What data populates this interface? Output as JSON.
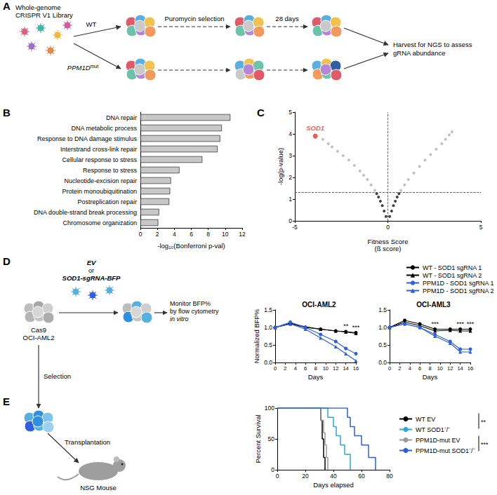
{
  "panel_labels": [
    "A",
    "B",
    "C",
    "D",
    "E"
  ],
  "diagrams": {
    "A": {
      "library": [
        "Whole-genome",
        "CRISPR V1 Library"
      ],
      "arms": [
        {
          "text": "WT"
        },
        {
          "text": "PPM1D",
          "sup": "mut"
        }
      ],
      "step1": "Puromycin selection",
      "step2": "28 days",
      "harvest": [
        "Harvest for NGS to assess",
        "gRNA abundance"
      ]
    },
    "D": {
      "vectors": [
        "EV",
        "or",
        "SOD1-sgRNA-BFP"
      ],
      "cells": [
        "Cas9",
        "OCI-AML2"
      ],
      "monitor": [
        "Monitor BFP%",
        "by flow cytometry",
        "in vitro"
      ],
      "selection": "Selection"
    },
    "E": {
      "transplant": "Transplantation",
      "mouse": "NSG Mouse"
    }
  },
  "chart_data": [
    {
      "type": "bar",
      "orientation": "horizontal",
      "categories": [
        "DNA repair",
        "DNA metabolic process",
        "Response to DNA damage stimulus",
        "Interstrand cross-link repair",
        "Cellular response to stress",
        "Response to stress",
        "Nucleotide-excision repair",
        "Protein monoubiquitination",
        "Postreplication repair",
        "DNA double-strand break processing",
        "Chromosome organization"
      ],
      "values": [
        10.6,
        9.6,
        9.4,
        9.1,
        7.3,
        4.6,
        3.6,
        3.5,
        3.4,
        2.2,
        2.1
      ],
      "color": "#c8c8c8",
      "xlabel": "-log₁₀(Bonferroni p-val)",
      "xlim": [
        0,
        12
      ],
      "xticks": [
        0,
        2,
        4,
        6,
        8,
        10,
        12
      ],
      "grid": false
    },
    {
      "type": "scatter",
      "xlabel": "Fitness Score\n(ß score)",
      "ylabel": "-log(p-value)",
      "xlim": [
        -5,
        5
      ],
      "xticks": [
        -5,
        0,
        5
      ],
      "ylim": [
        0,
        5
      ],
      "yticks": [
        0,
        1,
        2,
        3,
        4,
        5
      ],
      "reference_lines": {
        "x": 0,
        "y": 1.3
      },
      "grid": false,
      "series": [
        {
          "color": "#111111",
          "x": [
            -0.1,
            -0.2,
            -0.3,
            -0.4,
            -0.5,
            -0.6,
            0.1,
            0.2,
            0.3,
            0.4,
            0.5,
            0.6
          ],
          "values": [
            0.2,
            0.45,
            0.7,
            0.9,
            1.1,
            1.25,
            0.2,
            0.45,
            0.7,
            0.9,
            1.1,
            1.25
          ]
        },
        {
          "color": "#b0b0b0",
          "x": [
            -0.7,
            -0.9,
            -1.1,
            -1.3,
            -1.5,
            -1.8,
            -2.1,
            -2.4,
            -2.7,
            -3.0,
            -3.2,
            -3.5,
            0.7,
            0.9,
            1.1,
            1.4,
            1.7,
            2.0,
            2.3,
            2.6,
            2.9,
            3.1,
            3.3,
            3.45
          ],
          "values": [
            1.4,
            1.65,
            1.9,
            2.1,
            2.3,
            2.55,
            2.8,
            3.0,
            3.2,
            3.4,
            3.55,
            3.75,
            1.4,
            1.65,
            1.9,
            2.2,
            2.5,
            2.8,
            3.05,
            3.3,
            3.55,
            3.75,
            3.95,
            4.1
          ]
        },
        {
          "name": "SOD1",
          "color": "#e8332a",
          "x": [
            -3.9
          ],
          "values": [
            3.9
          ]
        }
      ]
    },
    {
      "type": "line",
      "title": "OCI-AML2",
      "xlabel": "Days",
      "ylabel": "Normalized BFP%",
      "x": [
        0,
        3,
        6,
        9,
        12,
        14,
        16
      ],
      "xlim": [
        0,
        16
      ],
      "xticks": [
        0,
        2,
        4,
        6,
        8,
        10,
        12,
        14,
        16
      ],
      "ylim": [
        0,
        1.5
      ],
      "yticks": [
        {
          "value": 0,
          "label": "0.0"
        },
        0.5,
        {
          "value": 1,
          "label": "1.0"
        },
        1.5
      ],
      "grid": false,
      "series": [
        {
          "name": "WT - SOD1 sgRNA 1",
          "color": "#000000",
          "marker": "circle",
          "values": [
            1,
            1.1,
            1.0,
            0.95,
            0.9,
            0.88,
            0.85
          ]
        },
        {
          "name": "WT - SOD1 sgRNA 2",
          "color": "#000000",
          "marker": "triangle",
          "values": [
            1,
            1.12,
            1.02,
            0.95,
            0.9,
            0.87,
            0.83
          ]
        },
        {
          "name": "PPM1D - SOD1 sgRNA 1",
          "color": "#2f5fe0",
          "marker": "circle",
          "values": [
            1,
            1.15,
            1.0,
            0.8,
            0.6,
            0.4,
            0.25
          ]
        },
        {
          "name": "PPM1D - SOD1 sgRNA 2",
          "color": "#2f5fe0",
          "marker": "triangle",
          "values": [
            1,
            1.1,
            0.95,
            0.7,
            0.45,
            0.25,
            0.05
          ]
        }
      ],
      "annotations": [
        {
          "text": "**",
          "x": 14,
          "y": 0.95
        },
        {
          "text": "***",
          "x": 16,
          "y": 0.92
        }
      ]
    },
    {
      "type": "line",
      "title": "OCI-AML3",
      "xlabel": "Days",
      "x": [
        0,
        3,
        6,
        9,
        12,
        14,
        16
      ],
      "xlim": [
        0,
        16
      ],
      "xticks": [
        0,
        2,
        4,
        6,
        8,
        10,
        12,
        14,
        16
      ],
      "ylim": [
        0,
        1.5
      ],
      "yticks": [
        {
          "value": 0,
          "label": "0.0"
        },
        0.5,
        {
          "value": 1,
          "label": "1.0"
        },
        1.5
      ],
      "grid": false,
      "legend": "right",
      "series": [
        {
          "name": "WT - SOD1 sgRNA 1",
          "color": "#000000",
          "marker": "circle",
          "values": [
            1,
            1.2,
            1.1,
            0.95,
            0.95,
            0.95,
            0.95
          ]
        },
        {
          "name": "WT - SOD1 sgRNA 2",
          "color": "#000000",
          "marker": "triangle",
          "values": [
            1,
            1.15,
            1.05,
            0.9,
            0.92,
            0.9,
            0.9
          ]
        },
        {
          "name": "PPM1D - SOD1 sgRNA 1",
          "color": "#2f5fe0",
          "marker": "circle",
          "values": [
            1,
            1.1,
            1.0,
            0.8,
            0.6,
            0.38,
            0.38
          ]
        },
        {
          "name": "PPM1D - SOD1 sgRNA 2",
          "color": "#2f5fe0",
          "marker": "triangle",
          "values": [
            1,
            1.1,
            1.0,
            0.75,
            0.55,
            0.3,
            0.3
          ]
        }
      ],
      "annotations": [
        {
          "text": "***",
          "x": 9,
          "y": 1.02
        },
        {
          "text": "***",
          "x": 14,
          "y": 1.02
        },
        {
          "text": "***",
          "x": 16,
          "y": 1.02
        }
      ]
    },
    {
      "type": "line",
      "line_style": "step",
      "xlabel": "Days elapsed",
      "ylabel": "Percent Survival",
      "xlim": [
        0,
        80
      ],
      "xticks": [
        0,
        20,
        40,
        60,
        80
      ],
      "ylim": [
        0,
        100
      ],
      "yticks": [
        0,
        50,
        100
      ],
      "grid": false,
      "legend": "right",
      "series": [
        {
          "name": "WT EV",
          "color": "#000000",
          "x": [
            0,
            31,
            32,
            33,
            34
          ],
          "values": [
            100,
            80,
            50,
            20,
            0
          ]
        },
        {
          "name": "WT SOD1⁻/⁻",
          "color": "#2aa7df",
          "x": [
            0,
            36,
            40,
            42,
            45,
            48,
            52
          ],
          "values": [
            100,
            85,
            70,
            55,
            40,
            25,
            0
          ]
        },
        {
          "name": "PPM1D-mut EV",
          "color": "#999999",
          "x": [
            0,
            31,
            33,
            34,
            35,
            36
          ],
          "values": [
            100,
            80,
            60,
            40,
            20,
            0
          ]
        },
        {
          "name": "PPM1D-mut SOD1⁻/⁻",
          "color": "#2a5fe0",
          "x": [
            0,
            50,
            52,
            55,
            60,
            65,
            70
          ],
          "values": [
            100,
            85,
            70,
            55,
            40,
            20,
            0
          ]
        }
      ],
      "significance": [
        {
          "text": "**",
          "between": [
            "WT EV",
            "WT SOD1⁻/⁻"
          ]
        },
        {
          "text": "***",
          "between": [
            "PPM1D-mut EV",
            "PPM1D-mut SOD1⁻/⁻"
          ]
        }
      ]
    }
  ]
}
